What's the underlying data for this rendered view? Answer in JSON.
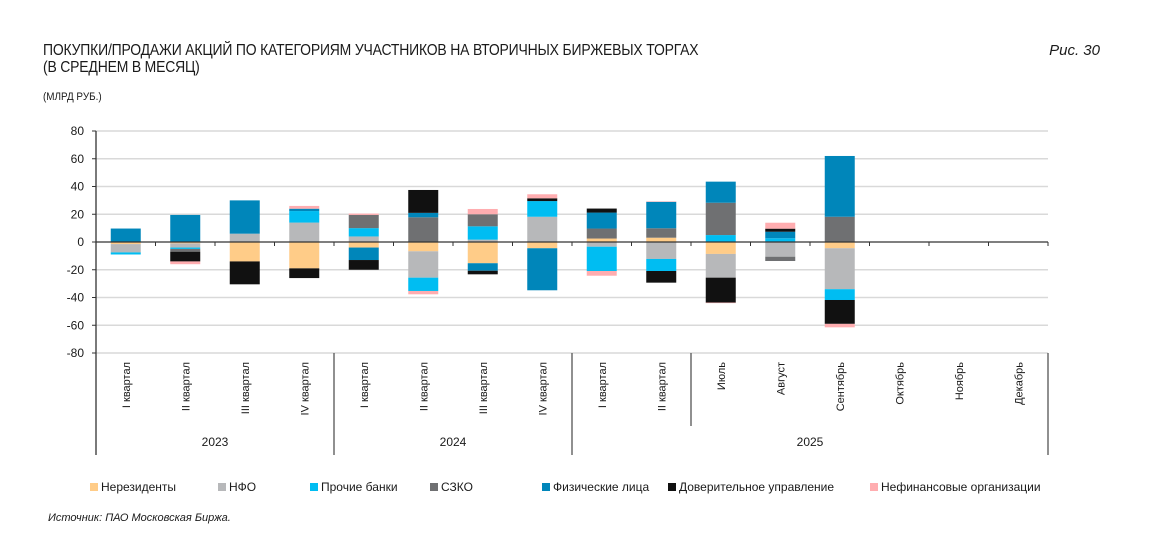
{
  "header": {
    "title_line1": "ПОКУПКИ/ПРОДАЖИ АКЦИЙ ПО КАТЕГОРИЯМ УЧАСТНИКОВ НА ВТОРИЧНЫХ БИРЖЕВЫХ ТОРГАХ",
    "title_line2": "(В СРЕДНЕМ В МЕСЯЦ)",
    "units": "(МЛРД РУБ.)",
    "figure_label": "Рис. 30"
  },
  "footer": {
    "source": "Источник: ПАО Московская Биржа."
  },
  "chart_data": {
    "type": "bar",
    "stacked": true,
    "title": "ПОКУПКИ/ПРОДАЖИ АКЦИЙ ПО КАТЕГОРИЯМ УЧАСТНИКОВ НА ВТОРИЧНЫХ БИРЖЕВЫХ ТОРГАХ (В СРЕДНЕМ В МЕСЯЦ)",
    "ylabel": "млрд руб.",
    "xlabel": "",
    "ylim": [
      -80,
      80
    ],
    "yticks": [
      80,
      60,
      40,
      20,
      0,
      -20,
      -40,
      -60,
      -80
    ],
    "grid": true,
    "legend_position": "bottom",
    "categories": [
      "I квартал",
      "II квартал",
      "III квартал",
      "IV квартал",
      "I квартал",
      "II квартал",
      "III квартал",
      "IV квартал",
      "I квартал",
      "II квартал",
      "Июль",
      "Август",
      "Сентябрь",
      "Октябрь",
      "Ноябрь",
      "Декабрь"
    ],
    "groups": [
      {
        "label": "2023",
        "count": 4
      },
      {
        "label": "2024",
        "count": 4
      },
      {
        "label": "2025",
        "count": 8
      }
    ],
    "series": [
      {
        "name": "Нерезиденты",
        "color": "#FFCC88",
        "values": [
          -1.5,
          -1,
          -14,
          -19,
          -4,
          -6.7,
          -15.3,
          -4.5,
          2.5,
          3.1,
          -8.6,
          0,
          -4.5,
          null,
          null,
          null
        ]
      },
      {
        "name": "НФО",
        "color": "#B7B8BA",
        "values": [
          -6,
          -3,
          6,
          14,
          4,
          -19,
          1.7,
          18.2,
          -3.4,
          -12.2,
          -17.1,
          -10.6,
          -29.5,
          null,
          null,
          null
        ]
      },
      {
        "name": "Прочие банки",
        "color": "#00BDF2",
        "values": [
          -1.5,
          -1,
          0,
          8.3,
          6,
          -9.6,
          9.6,
          11.3,
          -17.5,
          -8.7,
          5,
          2.7,
          -7.8,
          null,
          null,
          null
        ]
      },
      {
        "name": "СЗКО",
        "color": "#6F7072",
        "values": [
          0,
          -2,
          0,
          0,
          9.5,
          17.8,
          8.7,
          0,
          7.2,
          6.8,
          23.3,
          -3.1,
          18.2,
          null,
          null,
          null
        ]
      },
      {
        "name": "Физические лица",
        "color": "#0086BA",
        "values": [
          9.7,
          19.5,
          24,
          1.7,
          -9,
          3.2,
          -5.4,
          -30.3,
          11.5,
          19.1,
          15.2,
          4.7,
          43.8,
          null,
          null,
          null
        ]
      },
      {
        "name": "Доверительное управление",
        "color": "#111111",
        "values": [
          0,
          -7,
          -16.5,
          -7,
          -7,
          16.5,
          -2.6,
          2,
          2.9,
          -8.4,
          -18,
          2.2,
          -17.2,
          null,
          null,
          null
        ]
      },
      {
        "name": "Нефинансовые организации",
        "color": "#FFADB0",
        "values": [
          0,
          -2,
          0,
          2,
          1,
          -2.4,
          3.8,
          2.9,
          -3.4,
          0.3,
          -0.3,
          4.3,
          -2.5,
          null,
          null,
          null
        ]
      }
    ]
  }
}
